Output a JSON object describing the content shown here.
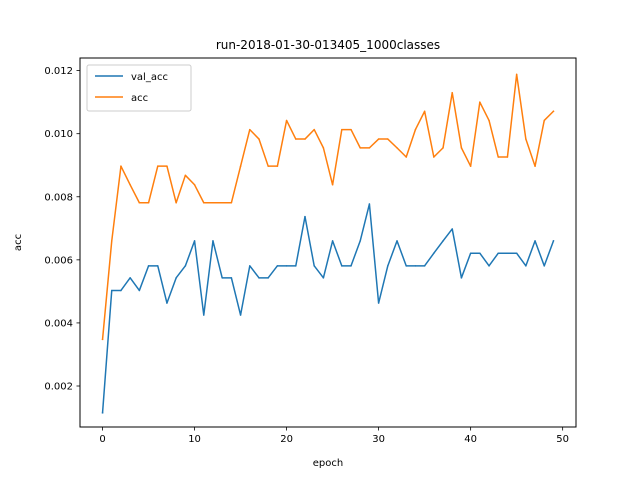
{
  "chart_data": {
    "type": "line",
    "title": "run-2018-01-30-013405_1000classes",
    "xlabel": "epoch",
    "ylabel": "acc",
    "xlim": [
      -2.45,
      51.45
    ],
    "ylim": [
      0.0007,
      0.0124
    ],
    "xticks": [
      "0",
      "10",
      "20",
      "30",
      "40",
      "50"
    ],
    "xtick_values": [
      0,
      10,
      20,
      30,
      40,
      50
    ],
    "yticks": [
      "0.002",
      "0.004",
      "0.006",
      "0.008",
      "0.010",
      "0.012"
    ],
    "ytick_values": [
      0.002,
      0.004,
      0.006,
      0.008,
      0.01,
      0.012
    ],
    "grid": false,
    "legend_position": "top-left",
    "x": [
      0,
      1,
      2,
      3,
      4,
      5,
      6,
      7,
      8,
      9,
      10,
      11,
      12,
      13,
      14,
      15,
      16,
      17,
      18,
      19,
      20,
      21,
      22,
      23,
      24,
      25,
      26,
      27,
      28,
      29,
      30,
      31,
      32,
      33,
      34,
      35,
      36,
      37,
      38,
      39,
      40,
      41,
      42,
      43,
      44,
      45,
      46,
      47,
      48,
      49
    ],
    "series": [
      {
        "name": "val_acc",
        "color": "#1f77b4",
        "values": [
          0.00115,
          0.00503,
          0.00503,
          0.00543,
          0.00503,
          0.00581,
          0.00581,
          0.00463,
          0.00543,
          0.00581,
          0.0066,
          0.00425,
          0.0066,
          0.00543,
          0.00543,
          0.00425,
          0.00581,
          0.00543,
          0.00543,
          0.00581,
          0.00581,
          0.00581,
          0.00737,
          0.00581,
          0.00543,
          0.0066,
          0.00581,
          0.00581,
          0.0066,
          0.00777,
          0.00463,
          0.00581,
          0.0066,
          0.00581,
          0.00581,
          0.00581,
          0.00621,
          0.0066,
          0.00698,
          0.00543,
          0.00621,
          0.00621,
          0.00581,
          0.00621,
          0.00621,
          0.00621,
          0.00581,
          0.0066,
          0.00581,
          0.0066
        ]
      },
      {
        "name": "acc",
        "color": "#ff7f0e",
        "values": [
          0.00348,
          0.0066,
          0.00897,
          0.00838,
          0.00781,
          0.00781,
          0.00897,
          0.00897,
          0.00781,
          0.00868,
          0.00838,
          0.00781,
          0.00781,
          0.00781,
          0.00781,
          0.00897,
          0.01013,
          0.00983,
          0.00897,
          0.00897,
          0.01042,
          0.00983,
          0.00983,
          0.01013,
          0.00955,
          0.00838,
          0.01013,
          0.01013,
          0.00955,
          0.00955,
          0.00983,
          0.00983,
          0.00955,
          0.00926,
          0.01013,
          0.01071,
          0.00926,
          0.00955,
          0.0113,
          0.00955,
          0.00897,
          0.011,
          0.01042,
          0.00926,
          0.00926,
          0.01188,
          0.00983,
          0.00897,
          0.01042,
          0.01071
        ]
      }
    ]
  }
}
